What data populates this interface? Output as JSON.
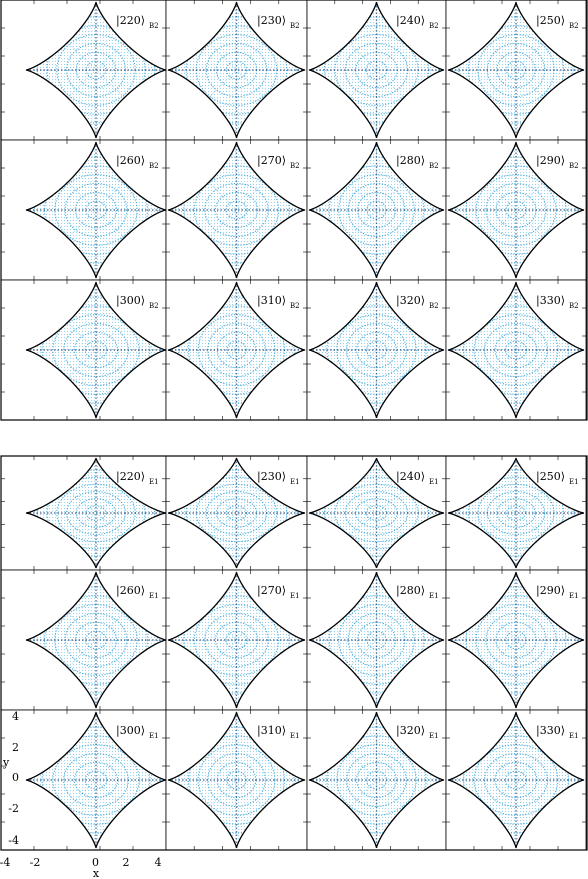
{
  "figure": {
    "block_top": {
      "subscript": "B2",
      "rows": [
        [
          "220",
          "230",
          "240",
          "250"
        ],
        [
          "260",
          "270",
          "280",
          "290"
        ],
        [
          "300",
          "310",
          "320",
          "330"
        ]
      ]
    },
    "block_bottom": {
      "subscript": "E1",
      "rows": [
        [
          "220",
          "230",
          "240",
          "250"
        ],
        [
          "260",
          "270",
          "280",
          "290"
        ],
        [
          "300",
          "310",
          "320",
          "330"
        ]
      ]
    },
    "x_axis": {
      "label": "x",
      "ticks": [
        "-4",
        "-2",
        "0",
        "2",
        "4"
      ]
    },
    "y_axis": {
      "label": "y",
      "ticks": [
        "4",
        "2",
        "0",
        "-2",
        "-4"
      ]
    },
    "colors": {
      "boundary": "#000000",
      "density_light": "#7fc8ea",
      "density_mid": "#2a9fd6",
      "density_dark": "#1b3f73"
    }
  }
}
